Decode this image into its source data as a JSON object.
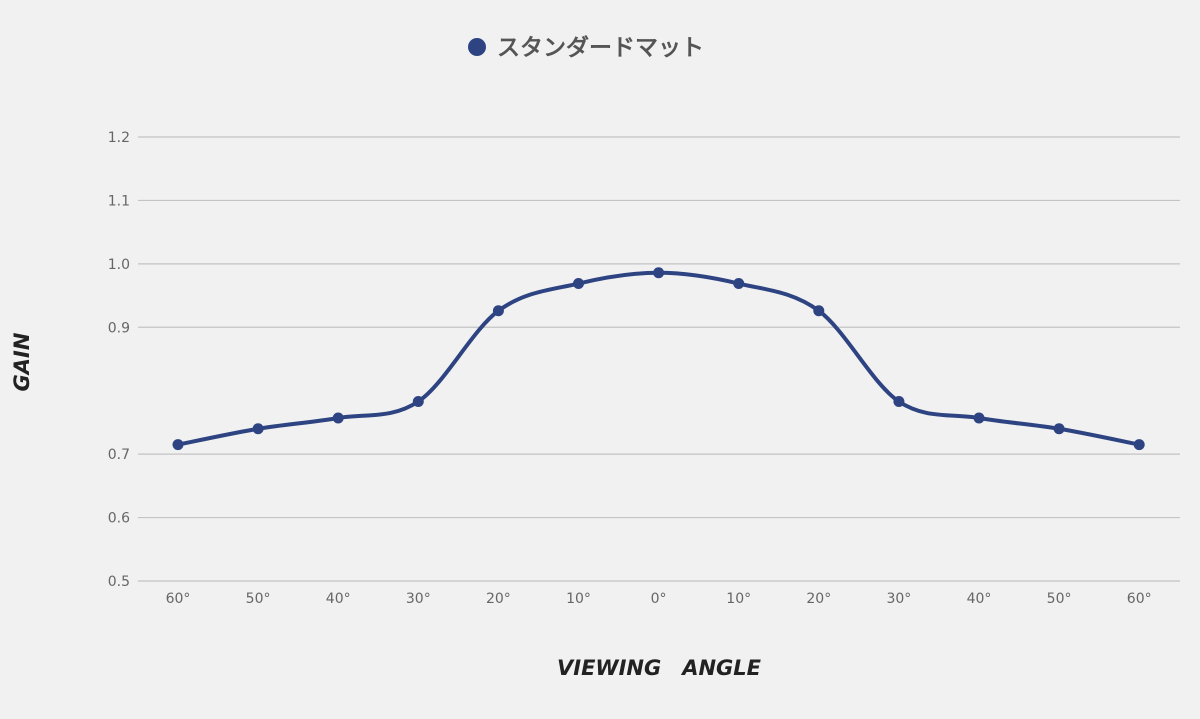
{
  "chart_data": {
    "type": "line",
    "title": "",
    "xlabel": "VIEWING　ANGLE",
    "ylabel": "GAIN",
    "categories": [
      "60°",
      "50°",
      "40°",
      "30°",
      "20°",
      "10°",
      "0°",
      "10°",
      "20°",
      "30°",
      "40°",
      "50°",
      "60°"
    ],
    "series": [
      {
        "name": "スタンダードマット",
        "color": "#2e4482",
        "values": [
          0.715,
          0.74,
          0.757,
          0.783,
          0.926,
          0.969,
          0.986,
          0.969,
          0.926,
          0.783,
          0.757,
          0.74,
          0.715
        ]
      }
    ],
    "yticks": [
      "1.2",
      "1.1",
      "1.0",
      "0.9",
      "0.7",
      "0.6",
      "0.5"
    ],
    "ylim": [
      0.5,
      1.2
    ],
    "grid": true,
    "legend": "top-center"
  }
}
